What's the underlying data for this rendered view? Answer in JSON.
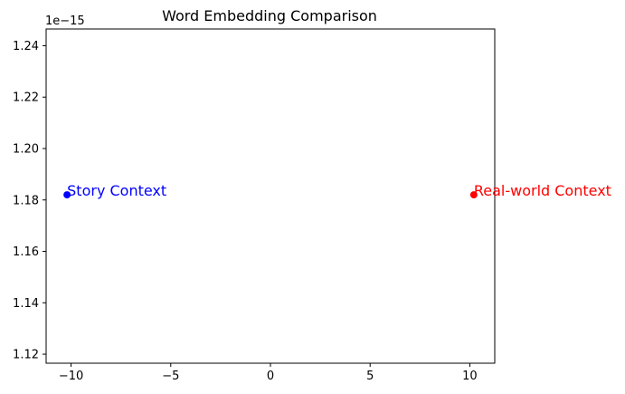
{
  "chart_data": {
    "type": "scatter",
    "title": "Word Embedding Comparison",
    "xlabel": "",
    "ylabel": "",
    "y_offset_label": "1e−15",
    "xlim": [
      -11.25,
      11.25
    ],
    "ylim": [
      1.1165,
      1.2465
    ],
    "y_scale_factor": 1e-15,
    "grid": false,
    "x_ticks": [
      -10,
      -5,
      0,
      5,
      10
    ],
    "x_tick_labels": [
      "−10",
      "−5",
      "0",
      "5",
      "10"
    ],
    "y_ticks": [
      1.12,
      1.14,
      1.16,
      1.18,
      1.2,
      1.22,
      1.24
    ],
    "y_tick_labels": [
      "1.12",
      "1.14",
      "1.16",
      "1.18",
      "1.20",
      "1.22",
      "1.24"
    ],
    "points": [
      {
        "label": "Story Context",
        "x": -10.2,
        "y": 1.182,
        "color": "#0000ff"
      },
      {
        "label": "Real-world Context",
        "x": 10.2,
        "y": 1.182,
        "color": "#ff0000"
      }
    ]
  }
}
